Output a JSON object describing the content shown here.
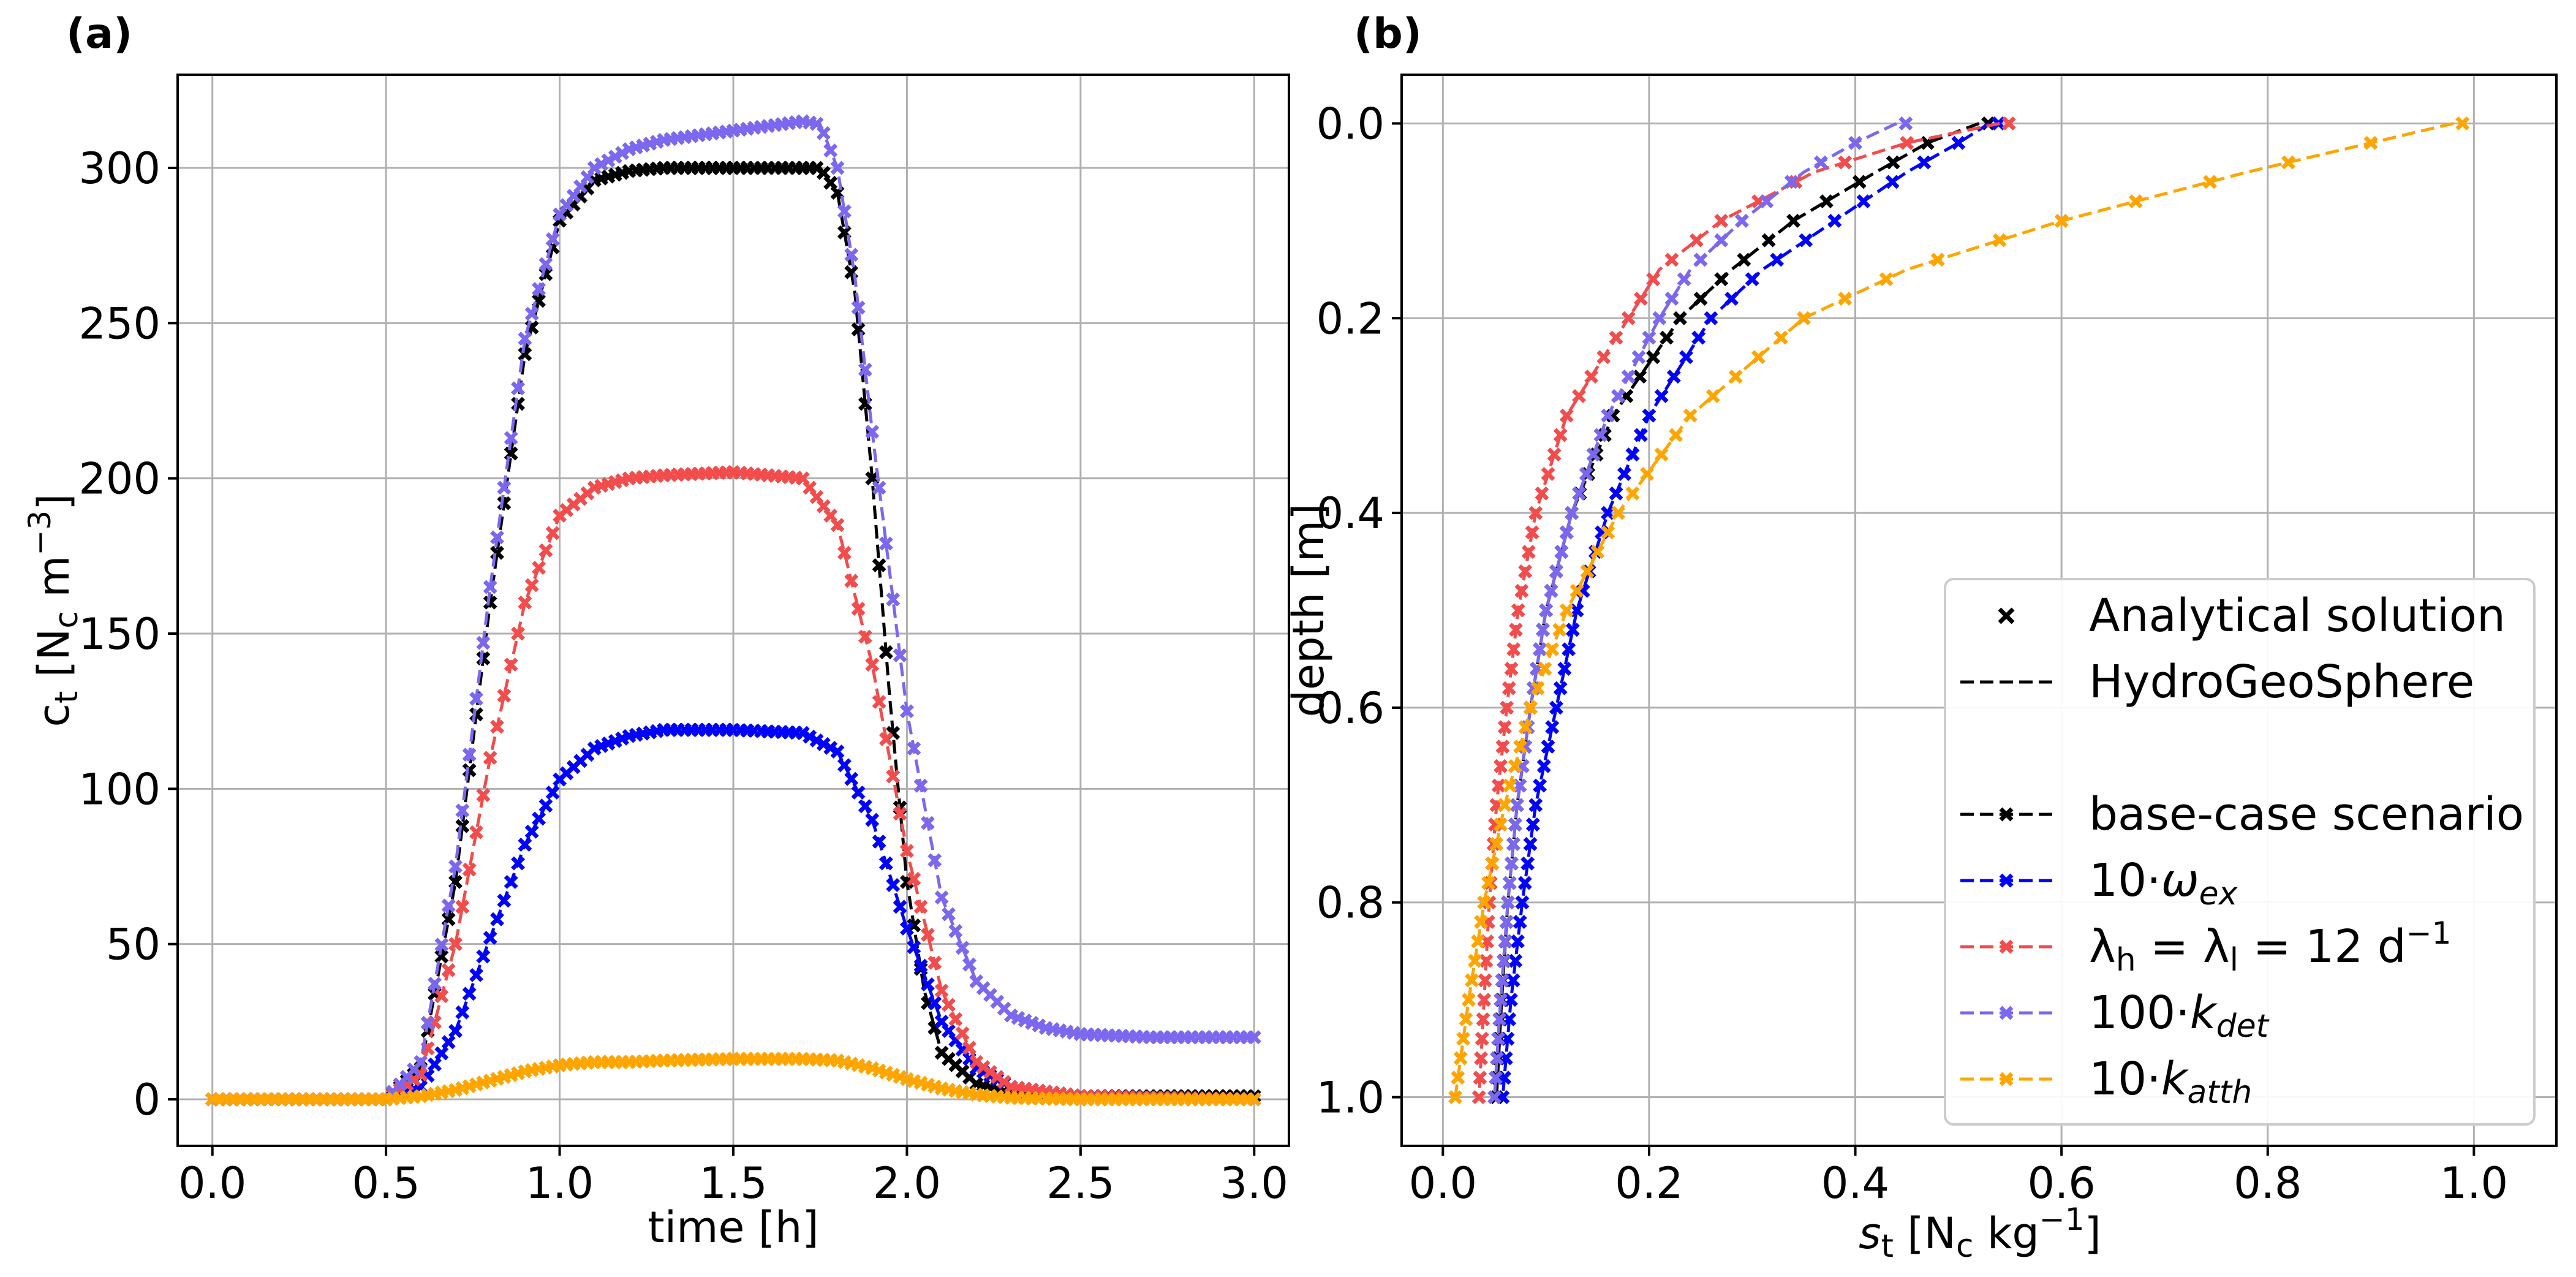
{
  "panels": [
    {
      "label": "(a)"
    },
    {
      "label": "(b)"
    }
  ],
  "legend": {
    "items": [
      {
        "label": "Analytical solution",
        "kind": "marker"
      },
      {
        "label": "HydroGeoSphere",
        "kind": "line"
      },
      {
        "label": "",
        "kind": "blank"
      },
      {
        "label": "base-case scenario",
        "kind": "series",
        "series": 0
      },
      {
        "label": "10·ω_ex",
        "kind": "series",
        "series": 1
      },
      {
        "label": "λ_h = λ_l = 12 d⁻¹",
        "kind": "series",
        "series": 2
      },
      {
        "label": "100·k_det",
        "kind": "series",
        "series": 3
      },
      {
        "label": "10·k_atth",
        "kind": "series",
        "series": 4
      }
    ]
  },
  "series_colors": [
    "#000000",
    "#0000ff",
    "#f24c4c",
    "#7b68ee",
    "#ffa500"
  ],
  "chart_data": [
    {
      "type": "line",
      "panel": "(a)",
      "xlabel": "time [h]",
      "ylabel": "c_t [N_c m^-3]",
      "xlim": [
        -0.1,
        3.1
      ],
      "ylim": [
        -15,
        330
      ],
      "xticks": [
        0.0,
        0.5,
        1.0,
        1.5,
        2.0,
        2.5,
        3.0
      ],
      "yticks": [
        0,
        50,
        100,
        150,
        200,
        250,
        300
      ],
      "grid": true,
      "series": [
        {
          "name": "base-case scenario",
          "color": "#000000",
          "x": [
            0.0,
            0.5,
            0.6,
            0.7,
            0.8,
            0.9,
            1.0,
            1.1,
            1.2,
            1.3,
            1.5,
            1.75,
            1.8,
            1.85,
            1.9,
            1.95,
            2.0,
            2.05,
            2.1,
            2.2,
            2.3,
            2.5,
            3.0
          ],
          "y": [
            0,
            0,
            10,
            70,
            160,
            240,
            283,
            296,
            299,
            300,
            300,
            300,
            292,
            260,
            200,
            130,
            70,
            35,
            15,
            5,
            2,
            1,
            1
          ]
        },
        {
          "name": "10·ω_ex",
          "color": "#0000ff",
          "x": [
            0.0,
            0.5,
            0.6,
            0.7,
            0.8,
            0.9,
            1.0,
            1.1,
            1.2,
            1.3,
            1.5,
            1.7,
            1.8,
            1.9,
            2.0,
            2.1,
            2.2,
            2.3,
            2.5,
            3.0
          ],
          "y": [
            0,
            0,
            4,
            22,
            52,
            82,
            103,
            113,
            117,
            119,
            119,
            118,
            112,
            90,
            55,
            25,
            10,
            4,
            1,
            0
          ]
        },
        {
          "name": "λ_h = λ_l = 12 d⁻¹",
          "color": "#f24c4c",
          "x": [
            0.0,
            0.5,
            0.6,
            0.7,
            0.8,
            0.9,
            1.0,
            1.1,
            1.2,
            1.3,
            1.5,
            1.7,
            1.8,
            1.9,
            2.0,
            2.1,
            2.2,
            2.3,
            2.5,
            3.0
          ],
          "y": [
            0,
            0,
            8,
            50,
            110,
            160,
            188,
            197,
            200,
            201,
            202,
            200,
            185,
            140,
            80,
            35,
            12,
            4,
            1,
            0
          ]
        },
        {
          "name": "100·k_det",
          "color": "#7b68ee",
          "x": [
            0.0,
            0.5,
            0.6,
            0.7,
            0.8,
            0.9,
            1.0,
            1.1,
            1.2,
            1.3,
            1.5,
            1.7,
            1.75,
            1.8,
            1.85,
            1.9,
            2.0,
            2.1,
            2.2,
            2.3,
            2.4,
            2.5,
            2.7,
            3.0
          ],
          "y": [
            0,
            0,
            12,
            75,
            165,
            245,
            285,
            300,
            306,
            309,
            312,
            315,
            314,
            300,
            265,
            215,
            125,
            65,
            38,
            27,
            23,
            21,
            20,
            20
          ]
        },
        {
          "name": "10·k_atth",
          "color": "#ffa500",
          "x": [
            0.0,
            0.5,
            0.6,
            0.7,
            0.8,
            0.9,
            1.0,
            1.1,
            1.2,
            1.3,
            1.5,
            1.7,
            1.8,
            1.9,
            2.0,
            2.1,
            2.2,
            2.3,
            2.5,
            3.0
          ],
          "y": [
            0,
            0,
            1,
            3,
            6,
            9,
            11,
            12,
            12,
            12.5,
            13,
            13,
            12.5,
            10,
            6.5,
            3.5,
            1.5,
            0.5,
            0,
            0
          ]
        }
      ]
    },
    {
      "type": "line",
      "panel": "(b)",
      "xlabel": "s_t [N_c kg^-1]",
      "ylabel": "depth [m]",
      "xlim": [
        -0.04,
        1.08
      ],
      "ylim": [
        1.05,
        -0.05
      ],
      "yaxis_inverted": true,
      "xticks": [
        0.0,
        0.2,
        0.4,
        0.6,
        0.8,
        1.0
      ],
      "yticks": [
        0.0,
        0.2,
        0.4,
        0.6,
        0.8,
        1.0
      ],
      "grid": true,
      "legend_position": "lower right",
      "series": [
        {
          "name": "base-case scenario",
          "color": "#000000",
          "depth": [
            0,
            0.02,
            0.05,
            0.1,
            0.15,
            0.2,
            0.3,
            0.4,
            0.5,
            0.6,
            0.7,
            0.8,
            0.9,
            1.0
          ],
          "s": [
            0.52,
            0.47,
            0.42,
            0.34,
            0.28,
            0.23,
            0.165,
            0.125,
            0.1,
            0.085,
            0.072,
            0.063,
            0.057,
            0.052
          ]
        },
        {
          "name": "10·ω_ex",
          "color": "#0000ff",
          "depth": [
            0,
            0.02,
            0.05,
            0.1,
            0.15,
            0.2,
            0.3,
            0.4,
            0.5,
            0.6,
            0.7,
            0.8,
            0.9,
            1.0
          ],
          "s": [
            0.53,
            0.5,
            0.45,
            0.38,
            0.31,
            0.26,
            0.2,
            0.16,
            0.13,
            0.11,
            0.09,
            0.077,
            0.066,
            0.058
          ]
        },
        {
          "name": "λ_h = λ_l = 12 d⁻¹",
          "color": "#f24c4c",
          "depth": [
            0,
            0.02,
            0.05,
            0.1,
            0.15,
            0.2,
            0.3,
            0.4,
            0.5,
            0.6,
            0.7,
            0.8,
            0.9,
            1.0
          ],
          "s": [
            0.54,
            0.45,
            0.36,
            0.27,
            0.21,
            0.18,
            0.12,
            0.09,
            0.073,
            0.062,
            0.052,
            0.045,
            0.04,
            0.035
          ]
        },
        {
          "name": "100·k_det",
          "color": "#7b68ee",
          "depth": [
            0,
            0.02,
            0.05,
            0.1,
            0.15,
            0.2,
            0.3,
            0.4,
            0.5,
            0.6,
            0.7,
            0.8,
            0.9,
            1.0
          ],
          "s": [
            0.44,
            0.4,
            0.35,
            0.29,
            0.24,
            0.21,
            0.16,
            0.125,
            0.1,
            0.085,
            0.072,
            0.063,
            0.056,
            0.05
          ]
        },
        {
          "name": "10·k_atth",
          "color": "#ffa500",
          "depth": [
            0,
            0.02,
            0.05,
            0.1,
            0.15,
            0.2,
            0.3,
            0.4,
            0.5,
            0.6,
            0.7,
            0.8,
            0.9,
            1.0
          ],
          "s": [
            0.98,
            0.9,
            0.78,
            0.6,
            0.45,
            0.35,
            0.24,
            0.17,
            0.12,
            0.085,
            0.06,
            0.04,
            0.025,
            0.012
          ]
        }
      ]
    }
  ]
}
